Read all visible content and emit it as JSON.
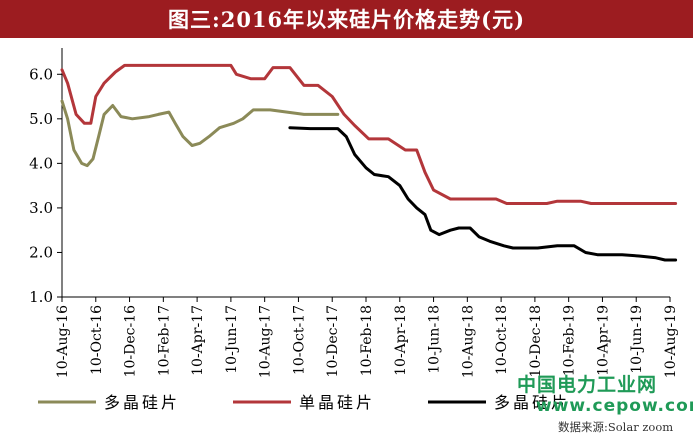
{
  "page": {
    "title": "图三:2016年以来硅片价格走势(元)"
  },
  "watermark": {
    "line1": "中国电力工业网",
    "line2": "www.cepow.com"
  },
  "source": "数据来源:Solar zoom",
  "colors": {
    "title_bg": "#9c1c20",
    "axis": "#000000"
  },
  "chart_data": {
    "type": "line",
    "title": "图三:2016年以来硅片价格走势(元)",
    "ylim": [
      1.0,
      6.5
    ],
    "yticks": [
      "1.0",
      "2.0",
      "3.0",
      "4.0",
      "5.0",
      "6.0"
    ],
    "xticks": [
      "10-Aug-16",
      "10-Oct-16",
      "10-Dec-16",
      "10-Feb-17",
      "10-Apr-17",
      "10-Jun-17",
      "10-Aug-17",
      "10-Oct-17",
      "10-Dec-17",
      "10-Feb-18",
      "10-Apr-18",
      "10-Jun-18",
      "10-Aug-18",
      "10-Oct-18",
      "10-Dec-18",
      "10-Feb-19",
      "10-Apr-19",
      "10-Jun-19",
      "10-Aug-19"
    ],
    "grid": false,
    "legend_position": "bottom",
    "series": [
      {
        "name": "多晶硅片",
        "color": "#8b8a58",
        "points": [
          [
            "2016-08-10",
            5.4
          ],
          [
            "2016-08-20",
            5.0
          ],
          [
            "2016-09-01",
            4.3
          ],
          [
            "2016-09-15",
            4.0
          ],
          [
            "2016-09-25",
            3.95
          ],
          [
            "2016-10-05",
            4.1
          ],
          [
            "2016-10-15",
            4.6
          ],
          [
            "2016-10-25",
            5.1
          ],
          [
            "2016-11-10",
            5.3
          ],
          [
            "2016-11-25",
            5.05
          ],
          [
            "2016-12-15",
            5.0
          ],
          [
            "2017-01-15",
            5.05
          ],
          [
            "2017-02-01",
            5.1
          ],
          [
            "2017-02-20",
            5.15
          ],
          [
            "2017-03-01",
            4.9
          ],
          [
            "2017-03-15",
            4.6
          ],
          [
            "2017-04-01",
            4.4
          ],
          [
            "2017-04-15",
            4.45
          ],
          [
            "2017-05-01",
            4.6
          ],
          [
            "2017-05-20",
            4.8
          ],
          [
            "2017-06-15",
            4.9
          ],
          [
            "2017-07-01",
            5.0
          ],
          [
            "2017-07-20",
            5.2
          ],
          [
            "2017-08-20",
            5.2
          ],
          [
            "2017-09-20",
            5.15
          ],
          [
            "2017-10-20",
            5.1
          ],
          [
            "2017-12-20",
            5.1
          ]
        ]
      },
      {
        "name": "单晶硅片",
        "color": "#b3363a",
        "points": [
          [
            "2016-08-10",
            6.1
          ],
          [
            "2016-08-20",
            5.8
          ],
          [
            "2016-09-05",
            5.1
          ],
          [
            "2016-09-20",
            4.9
          ],
          [
            "2016-10-01",
            4.9
          ],
          [
            "2016-10-10",
            5.5
          ],
          [
            "2016-10-25",
            5.8
          ],
          [
            "2016-11-15",
            6.05
          ],
          [
            "2016-12-01",
            6.2
          ],
          [
            "2017-01-15",
            6.2
          ],
          [
            "2017-02-10",
            6.2
          ],
          [
            "2017-04-15",
            6.2
          ],
          [
            "2017-06-10",
            6.2
          ],
          [
            "2017-06-20",
            6.0
          ],
          [
            "2017-07-15",
            5.9
          ],
          [
            "2017-08-10",
            5.9
          ],
          [
            "2017-08-25",
            6.15
          ],
          [
            "2017-09-25",
            6.15
          ],
          [
            "2017-10-20",
            5.75
          ],
          [
            "2017-11-15",
            5.75
          ],
          [
            "2017-12-10",
            5.5
          ],
          [
            "2018-01-01",
            5.1
          ],
          [
            "2018-01-20",
            4.85
          ],
          [
            "2018-02-15",
            4.55
          ],
          [
            "2018-03-20",
            4.55
          ],
          [
            "2018-04-20",
            4.3
          ],
          [
            "2018-05-10",
            4.3
          ],
          [
            "2018-05-25",
            3.8
          ],
          [
            "2018-06-10",
            3.4
          ],
          [
            "2018-07-10",
            3.2
          ],
          [
            "2018-08-10",
            3.2
          ],
          [
            "2018-10-01",
            3.2
          ],
          [
            "2018-10-20",
            3.1
          ],
          [
            "2018-12-01",
            3.1
          ],
          [
            "2019-01-01",
            3.1
          ],
          [
            "2019-01-20",
            3.15
          ],
          [
            "2019-03-01",
            3.15
          ],
          [
            "2019-03-20",
            3.1
          ],
          [
            "2019-05-01",
            3.1
          ],
          [
            "2019-08-20",
            3.1
          ]
        ]
      },
      {
        "name": "多晶硅片",
        "color": "#000000",
        "points": [
          [
            "2017-09-25",
            4.8
          ],
          [
            "2017-11-01",
            4.78
          ],
          [
            "2017-12-20",
            4.78
          ],
          [
            "2018-01-05",
            4.6
          ],
          [
            "2018-01-20",
            4.2
          ],
          [
            "2018-02-10",
            3.9
          ],
          [
            "2018-02-25",
            3.75
          ],
          [
            "2018-03-20",
            3.7
          ],
          [
            "2018-04-10",
            3.5
          ],
          [
            "2018-04-25",
            3.2
          ],
          [
            "2018-05-10",
            3.0
          ],
          [
            "2018-05-25",
            2.85
          ],
          [
            "2018-06-05",
            2.5
          ],
          [
            "2018-06-20",
            2.4
          ],
          [
            "2018-07-10",
            2.5
          ],
          [
            "2018-07-25",
            2.55
          ],
          [
            "2018-08-15",
            2.55
          ],
          [
            "2018-09-01",
            2.35
          ],
          [
            "2018-09-20",
            2.25
          ],
          [
            "2018-10-15",
            2.15
          ],
          [
            "2018-11-01",
            2.1
          ],
          [
            "2018-12-15",
            2.1
          ],
          [
            "2019-01-20",
            2.15
          ],
          [
            "2019-02-20",
            2.15
          ],
          [
            "2019-03-10",
            2.0
          ],
          [
            "2019-04-01",
            1.95
          ],
          [
            "2019-05-15",
            1.95
          ],
          [
            "2019-06-15",
            1.92
          ],
          [
            "2019-07-15",
            1.88
          ],
          [
            "2019-08-01",
            1.83
          ],
          [
            "2019-08-20",
            1.83
          ]
        ]
      }
    ]
  }
}
